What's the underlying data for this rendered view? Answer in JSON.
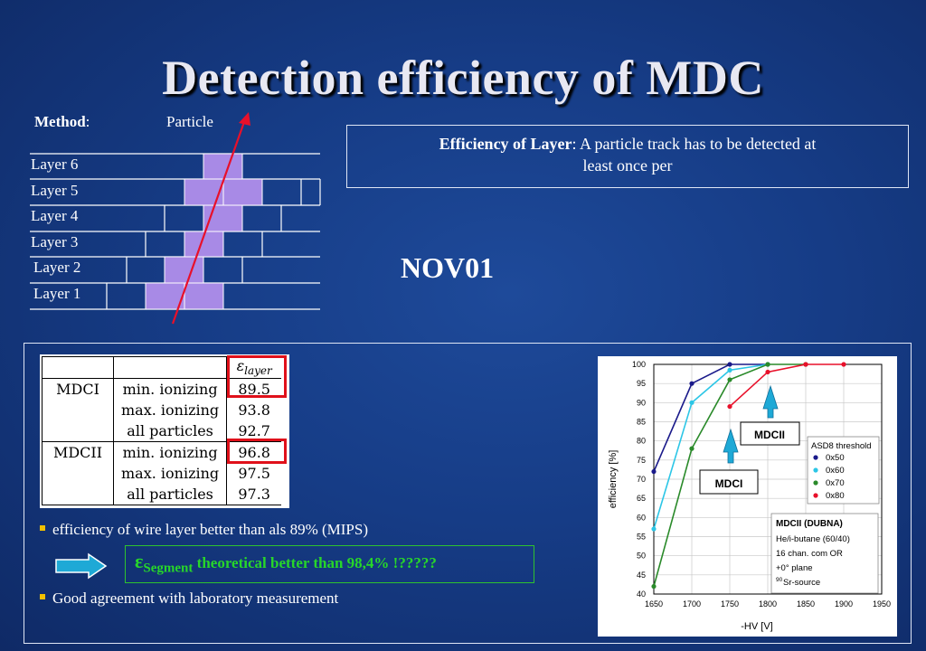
{
  "title": "Detection efficiency of MDC",
  "method": {
    "label": "Method",
    "colon": ":",
    "particle": "Particle"
  },
  "layers": [
    "Layer 6",
    "Layer 5",
    "Layer 4",
    "Layer 3",
    "Layer 2",
    "Layer 1"
  ],
  "efficiency_box": {
    "bold": "Efficiency of Layer",
    "rest": ":  A particle track has to be detected at",
    "line2": "least once per"
  },
  "nov01": "NOV01",
  "table": {
    "header_symbol": "ε",
    "header_sub": "layer",
    "rows": [
      {
        "detector": "MDCI",
        "condition": "min. ionizing",
        "value": "89.5",
        "highlight": true
      },
      {
        "detector": "",
        "condition": "max. ionizing",
        "value": "93.8",
        "highlight": false
      },
      {
        "detector": "",
        "condition": "all particles",
        "value": "92.7",
        "highlight": false
      },
      {
        "detector": "MDCII",
        "condition": "min. ionizing",
        "value": "96.8",
        "highlight": true
      },
      {
        "detector": "",
        "condition": "max. ionizing",
        "value": "97.5",
        "highlight": false
      },
      {
        "detector": "",
        "condition": "all particles",
        "value": "97.3",
        "highlight": false
      }
    ]
  },
  "bullets": [
    "efficiency of wire layer better than als 89% (MIPS)",
    "Good agreement with laboratory measurement"
  ],
  "segment_note": {
    "symbol": "ε",
    "sub": "Segment",
    "text": " theoretical better than 98,4% !?????"
  },
  "colors": {
    "accent_green": "#27d62a",
    "highlight_red": "#e0101a",
    "bullet_yellow": "#f0c000",
    "layer_cell": "#a88ae6",
    "track_red": "#e8102a"
  },
  "chart_data": {
    "type": "line",
    "xlabel": "-HV [V]",
    "ylabel": "efficiency [%]",
    "xlim": [
      1650,
      1950
    ],
    "ylim": [
      40,
      100
    ],
    "xticks": [
      1650,
      1700,
      1750,
      1800,
      1850,
      1900,
      1950
    ],
    "yticks": [
      40,
      45,
      50,
      55,
      60,
      65,
      70,
      75,
      80,
      85,
      90,
      95,
      100
    ],
    "grid": true,
    "legend_title": "ASD8 threshold",
    "legend_position": "right",
    "series": [
      {
        "name": "0x50",
        "color": "#1a1a8a",
        "x": [
          1650,
          1700,
          1750,
          1800
        ],
        "y": [
          72,
          95,
          100,
          100
        ]
      },
      {
        "name": "0x60",
        "color": "#2cc6e6",
        "x": [
          1650,
          1700,
          1750,
          1800
        ],
        "y": [
          57,
          90,
          98.5,
          100
        ]
      },
      {
        "name": "0x70",
        "color": "#2a8a2a",
        "x": [
          1650,
          1700,
          1750,
          1800,
          1850
        ],
        "y": [
          42,
          78,
          96,
          100,
          100
        ]
      },
      {
        "name": "0x80",
        "color": "#e8102a",
        "x": [
          1750,
          1800,
          1850,
          1900
        ],
        "y": [
          89,
          98,
          100,
          100
        ]
      }
    ],
    "annotations": [
      "MDCII",
      "MDCI"
    ],
    "info_box": [
      "MDCII (DUBNA)",
      "He/i-butane (60/40)",
      "16 chan. com OR",
      "+0° plane",
      "Sr-source"
    ],
    "info_sup": "90"
  }
}
